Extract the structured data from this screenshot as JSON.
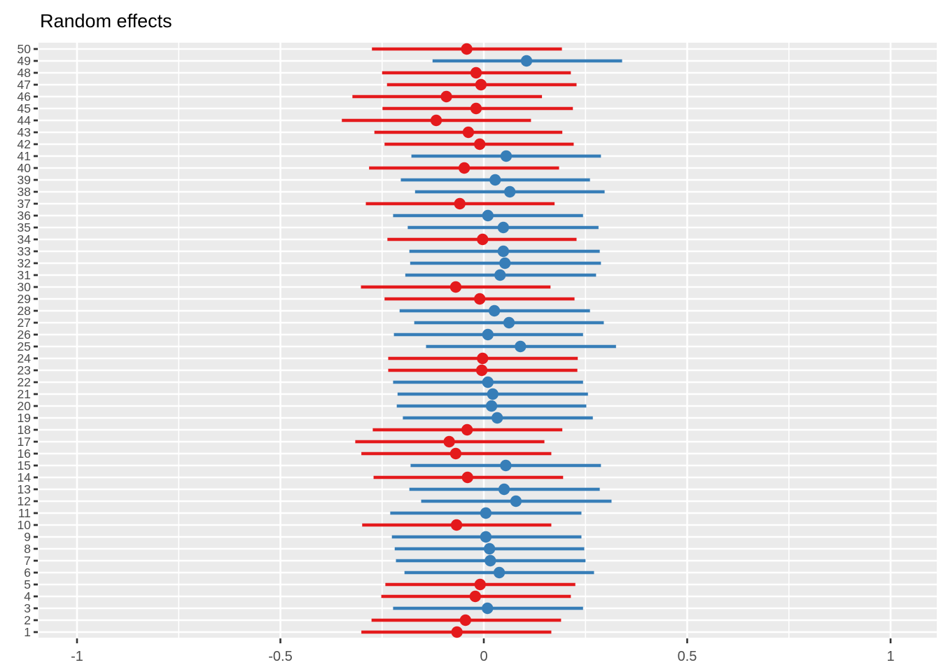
{
  "title": "Random effects",
  "colors": {
    "panel_background": "#EBEBEB",
    "gridline": "#FFFFFF",
    "tick_mark": "#333333",
    "axis_label": "#4D4D4D",
    "title_text": "#000000",
    "group_red": "#E41A1C",
    "group_blue": "#377EB8"
  },
  "axes": {
    "x_major_tick_values": [
      -1,
      -0.5,
      0,
      0.5,
      1
    ],
    "x_major_tick_labels": [
      "-1",
      "-0.5",
      "0",
      "0.5",
      "1"
    ],
    "x_minor_tick_values": [
      -0.75,
      -0.25,
      0.25,
      0.75
    ],
    "x_range": [
      -1.1,
      1.11
    ],
    "y_labels_top_to_bottom_note": "y axis runs 50 at top to 1 at bottom"
  },
  "chart_data": {
    "type": "scatter",
    "subtype": "pointrange-caterpillar",
    "title": "Random effects",
    "xlabel": "",
    "ylabel": "",
    "xlim": [
      -1.1,
      1.11
    ],
    "grid": true,
    "legend": "none",
    "points": [
      {
        "label": "1",
        "group": "red",
        "estimate": -0.066,
        "lower": -0.301,
        "upper": 0.166
      },
      {
        "label": "2",
        "group": "red",
        "estimate": -0.045,
        "lower": -0.276,
        "upper": 0.19
      },
      {
        "label": "3",
        "group": "blue",
        "estimate": 0.009,
        "lower": -0.223,
        "upper": 0.244
      },
      {
        "label": "4",
        "group": "red",
        "estimate": -0.021,
        "lower": -0.252,
        "upper": 0.214
      },
      {
        "label": "5",
        "group": "red",
        "estimate": -0.009,
        "lower": -0.242,
        "upper": 0.225
      },
      {
        "label": "6",
        "group": "blue",
        "estimate": 0.038,
        "lower": -0.195,
        "upper": 0.271
      },
      {
        "label": "7",
        "group": "blue",
        "estimate": 0.016,
        "lower": -0.216,
        "upper": 0.25
      },
      {
        "label": "8",
        "group": "blue",
        "estimate": 0.014,
        "lower": -0.219,
        "upper": 0.247
      },
      {
        "label": "9",
        "group": "blue",
        "estimate": 0.005,
        "lower": -0.226,
        "upper": 0.24
      },
      {
        "label": "10",
        "group": "red",
        "estimate": -0.067,
        "lower": -0.299,
        "upper": 0.166
      },
      {
        "label": "11",
        "group": "blue",
        "estimate": 0.005,
        "lower": -0.23,
        "upper": 0.24
      },
      {
        "label": "12",
        "group": "blue",
        "estimate": 0.079,
        "lower": -0.154,
        "upper": 0.314
      },
      {
        "label": "13",
        "group": "blue",
        "estimate": 0.05,
        "lower": -0.183,
        "upper": 0.285
      },
      {
        "label": "14",
        "group": "red",
        "estimate": -0.04,
        "lower": -0.271,
        "upper": 0.195
      },
      {
        "label": "15",
        "group": "blue",
        "estimate": 0.054,
        "lower": -0.18,
        "upper": 0.288
      },
      {
        "label": "16",
        "group": "red",
        "estimate": -0.069,
        "lower": -0.301,
        "upper": 0.166
      },
      {
        "label": "17",
        "group": "red",
        "estimate": -0.085,
        "lower": -0.316,
        "upper": 0.149
      },
      {
        "label": "18",
        "group": "red",
        "estimate": -0.041,
        "lower": -0.273,
        "upper": 0.193
      },
      {
        "label": "19",
        "group": "blue",
        "estimate": 0.033,
        "lower": -0.199,
        "upper": 0.268
      },
      {
        "label": "20",
        "group": "blue",
        "estimate": 0.019,
        "lower": -0.214,
        "upper": 0.252
      },
      {
        "label": "21",
        "group": "blue",
        "estimate": 0.022,
        "lower": -0.212,
        "upper": 0.256
      },
      {
        "label": "22",
        "group": "blue",
        "estimate": 0.01,
        "lower": -0.223,
        "upper": 0.244
      },
      {
        "label": "23",
        "group": "red",
        "estimate": -0.005,
        "lower": -0.235,
        "upper": 0.23
      },
      {
        "label": "24",
        "group": "red",
        "estimate": -0.003,
        "lower": -0.235,
        "upper": 0.231
      },
      {
        "label": "25",
        "group": "blue",
        "estimate": 0.09,
        "lower": -0.142,
        "upper": 0.325
      },
      {
        "label": "26",
        "group": "blue",
        "estimate": 0.01,
        "lower": -0.221,
        "upper": 0.244
      },
      {
        "label": "27",
        "group": "blue",
        "estimate": 0.062,
        "lower": -0.171,
        "upper": 0.295
      },
      {
        "label": "28",
        "group": "blue",
        "estimate": 0.026,
        "lower": -0.207,
        "upper": 0.261
      },
      {
        "label": "29",
        "group": "red",
        "estimate": -0.01,
        "lower": -0.244,
        "upper": 0.223
      },
      {
        "label": "30",
        "group": "red",
        "estimate": -0.069,
        "lower": -0.302,
        "upper": 0.164
      },
      {
        "label": "31",
        "group": "blue",
        "estimate": 0.04,
        "lower": -0.193,
        "upper": 0.276
      },
      {
        "label": "32",
        "group": "blue",
        "estimate": 0.052,
        "lower": -0.181,
        "upper": 0.288
      },
      {
        "label": "33",
        "group": "blue",
        "estimate": 0.048,
        "lower": -0.183,
        "upper": 0.285
      },
      {
        "label": "34",
        "group": "red",
        "estimate": -0.003,
        "lower": -0.237,
        "upper": 0.228
      },
      {
        "label": "35",
        "group": "blue",
        "estimate": 0.048,
        "lower": -0.187,
        "upper": 0.282
      },
      {
        "label": "36",
        "group": "blue",
        "estimate": 0.01,
        "lower": -0.223,
        "upper": 0.244
      },
      {
        "label": "37",
        "group": "red",
        "estimate": -0.059,
        "lower": -0.29,
        "upper": 0.174
      },
      {
        "label": "38",
        "group": "blue",
        "estimate": 0.064,
        "lower": -0.169,
        "upper": 0.297
      },
      {
        "label": "39",
        "group": "blue",
        "estimate": 0.028,
        "lower": -0.204,
        "upper": 0.261
      },
      {
        "label": "40",
        "group": "red",
        "estimate": -0.048,
        "lower": -0.282,
        "upper": 0.185
      },
      {
        "label": "41",
        "group": "blue",
        "estimate": 0.055,
        "lower": -0.178,
        "upper": 0.288
      },
      {
        "label": "42",
        "group": "red",
        "estimate": -0.01,
        "lower": -0.244,
        "upper": 0.221
      },
      {
        "label": "43",
        "group": "red",
        "estimate": -0.038,
        "lower": -0.269,
        "upper": 0.193
      },
      {
        "label": "44",
        "group": "red",
        "estimate": -0.117,
        "lower": -0.349,
        "upper": 0.116
      },
      {
        "label": "45",
        "group": "red",
        "estimate": -0.019,
        "lower": -0.249,
        "upper": 0.219
      },
      {
        "label": "46",
        "group": "red",
        "estimate": -0.092,
        "lower": -0.323,
        "upper": 0.143
      },
      {
        "label": "47",
        "group": "red",
        "estimate": -0.007,
        "lower": -0.238,
        "upper": 0.228
      },
      {
        "label": "48",
        "group": "red",
        "estimate": -0.019,
        "lower": -0.25,
        "upper": 0.214
      },
      {
        "label": "49",
        "group": "blue",
        "estimate": 0.105,
        "lower": -0.126,
        "upper": 0.34
      },
      {
        "label": "50",
        "group": "red",
        "estimate": -0.042,
        "lower": -0.275,
        "upper": 0.192
      }
    ]
  }
}
